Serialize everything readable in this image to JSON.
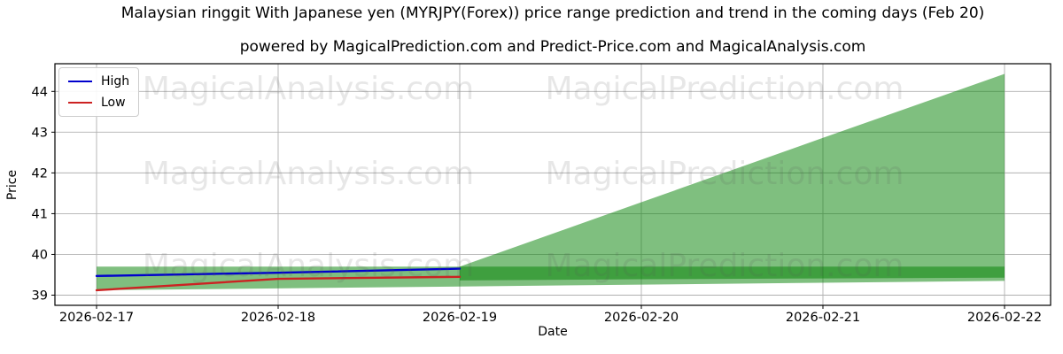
{
  "chart_data": {
    "type": "line",
    "title": "Malaysian ringgit With Japanese yen (MYRJPY(Forex)) price range prediction and trend in the coming days (Feb 20)",
    "subtitle": "powered by MagicalPrediction.com and Predict-Price.com and MagicalAnalysis.com",
    "xlabel": "Date",
    "ylabel": "Price",
    "categories": [
      "2026-02-17",
      "2026-02-18",
      "2026-02-19",
      "2026-02-20",
      "2026-02-21",
      "2026-02-22"
    ],
    "y_ticks": [
      39,
      40,
      41,
      42,
      43,
      44
    ],
    "ylim": [
      38.75,
      44.68
    ],
    "grid": true,
    "grid_color": "#b0b0b0",
    "legend_position": "upper-left",
    "series": [
      {
        "name": "High",
        "color": "#0000cd",
        "x": [
          "2026-02-17",
          "2026-02-18",
          "2026-02-19"
        ],
        "values": [
          39.47,
          39.55,
          39.65
        ]
      },
      {
        "name": "Low",
        "color": "#cc2222",
        "x": [
          "2026-02-17",
          "2026-02-18",
          "2026-02-19"
        ],
        "values": [
          39.12,
          39.4,
          39.45
        ]
      }
    ],
    "bands": [
      {
        "name": "range-band",
        "color": "#008000",
        "opacity": 0.5,
        "x": [
          "2026-02-17",
          "2026-02-22"
        ],
        "top": [
          39.7,
          39.7
        ],
        "bottom": [
          39.12,
          39.35
        ]
      },
      {
        "name": "forecast-fan",
        "color": "#008000",
        "opacity": 0.5,
        "x": [
          "2026-02-19",
          "2026-02-20",
          "2026-02-21",
          "2026-02-22"
        ],
        "top": [
          39.7,
          41.28,
          42.86,
          44.43
        ],
        "bottom": [
          39.36,
          39.39,
          39.41,
          39.43
        ]
      }
    ],
    "watermarks": {
      "left_text": "MagicalAnalysis.com",
      "right_text": "MagicalPrediction.com"
    }
  }
}
